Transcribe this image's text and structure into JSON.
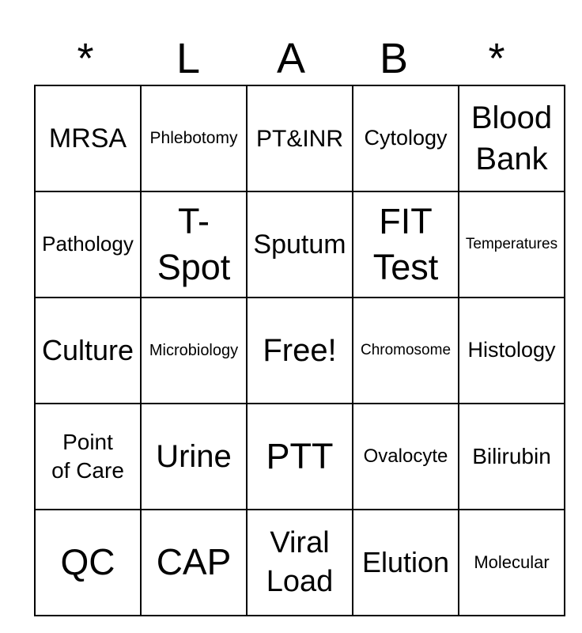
{
  "colors": {
    "text": "#000000",
    "grid_border": "#000000",
    "background": "#ffffff"
  },
  "card": {
    "title_letters": [
      "*",
      "L",
      "A",
      "B",
      "*"
    ],
    "cells": [
      [
        "MRSA",
        "Phlebotomy",
        "PT&INR",
        "Cytology",
        "Blood Bank"
      ],
      [
        "Pathology",
        "T-Spot",
        "Sputum",
        "FIT Test",
        "Temperatures"
      ],
      [
        "Culture",
        "Microbiology",
        "Free!",
        "Chromosome",
        "Histology"
      ],
      [
        "Point of Care",
        "Urine",
        "PTT",
        "Ovalocyte",
        "Bilirubin"
      ],
      [
        "QC",
        "CAP",
        "Viral Load",
        "Elution",
        "Molecular"
      ]
    ]
  }
}
